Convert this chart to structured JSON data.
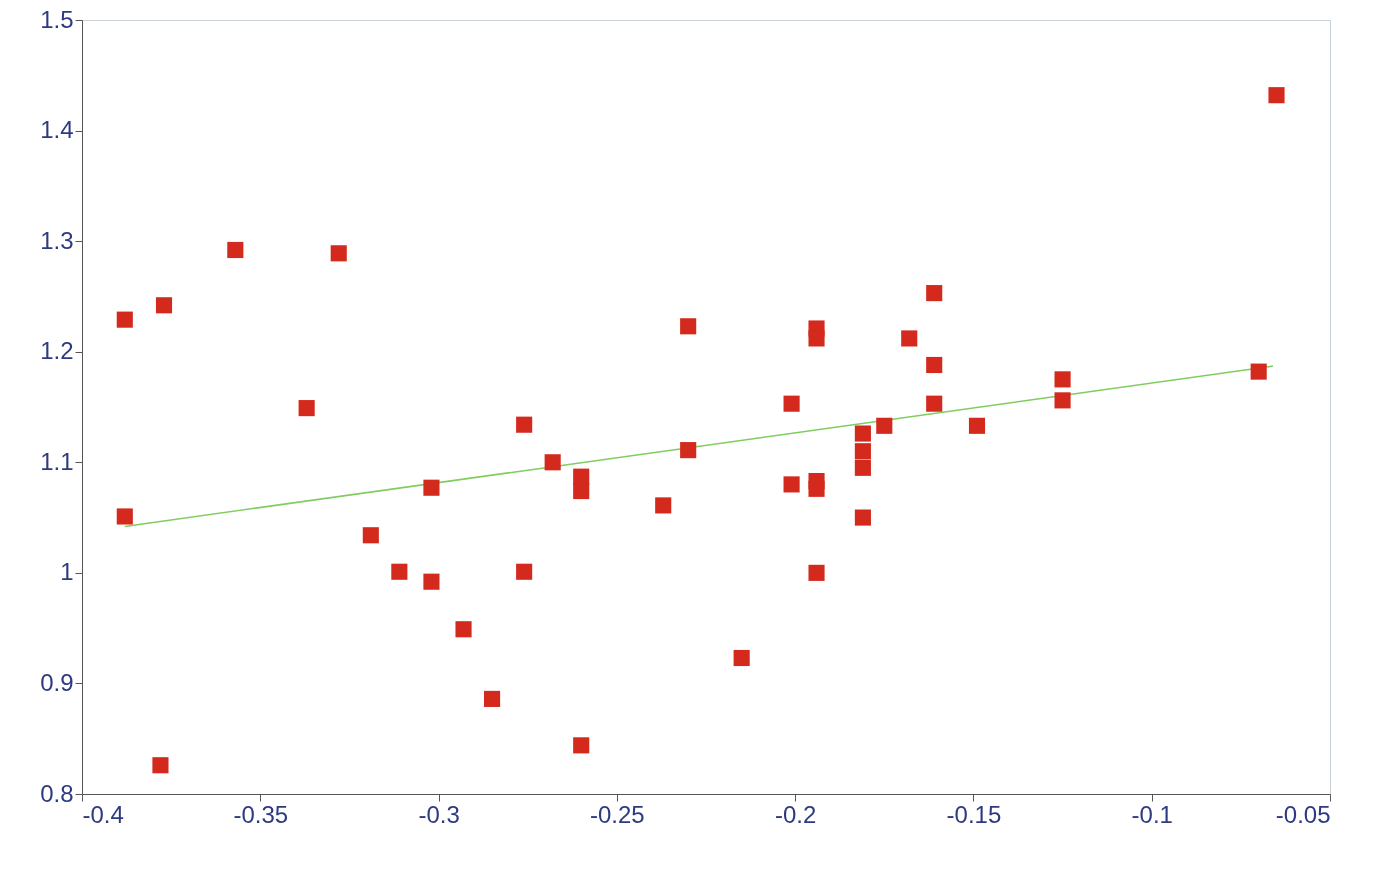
{
  "chart_data": {
    "type": "scatter",
    "marker": "square",
    "grid": false,
    "xlim": [
      -0.4,
      -0.05
    ],
    "xticks": [
      -0.4,
      -0.35,
      -0.3,
      -0.25,
      -0.2,
      -0.15,
      -0.1,
      -0.05
    ],
    "ylim": [
      0.8,
      1.5
    ],
    "yticks": [
      0.8,
      0.9,
      1,
      1.1,
      1.2,
      1.3,
      1.4,
      1.5
    ],
    "series": [
      {
        "color": "#d42a1e",
        "x": [
          -0.388,
          -0.377,
          -0.357,
          -0.328,
          -0.388,
          -0.378,
          -0.337,
          -0.319,
          -0.311,
          -0.302,
          -0.302,
          -0.293,
          -0.285,
          -0.276,
          -0.276,
          -0.268,
          -0.26,
          -0.26,
          -0.26,
          -0.237,
          -0.23,
          -0.23,
          -0.215,
          -0.201,
          -0.201,
          -0.194,
          -0.194,
          -0.194,
          -0.194,
          -0.194,
          -0.181,
          -0.181,
          -0.181,
          -0.181,
          -0.175,
          -0.168,
          -0.161,
          -0.161,
          -0.161,
          -0.149,
          -0.125,
          -0.125,
          -0.07,
          -0.065
        ],
        "values": [
          1.229,
          1.242,
          1.292,
          1.289,
          1.051,
          0.826,
          1.149,
          1.034,
          1.001,
          1.077,
          0.992,
          0.949,
          0.886,
          1.134,
          1.001,
          1.1,
          1.087,
          1.074,
          0.844,
          1.061,
          1.223,
          1.111,
          0.923,
          1.153,
          1.08,
          1.221,
          1.212,
          1.083,
          1.076,
          1.0,
          1.126,
          1.11,
          1.095,
          1.05,
          1.133,
          1.212,
          1.253,
          1.188,
          1.153,
          1.133,
          1.175,
          1.156,
          1.182,
          1.432
        ]
      },
      {
        "type": "line",
        "color": "#7fcc5f",
        "line_style": "solid",
        "marker": "none",
        "x": [
          -0.388,
          -0.066
        ],
        "values": [
          1.042,
          1.187
        ]
      }
    ]
  }
}
